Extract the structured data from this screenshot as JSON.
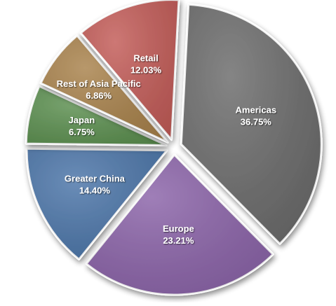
{
  "chart_data": {
    "type": "pie",
    "slices": [
      {
        "label": "Americas",
        "value": 36.75,
        "display": "36.75%",
        "color": "#6a6a6a"
      },
      {
        "label": "Europe",
        "value": 23.21,
        "display": "23.21%",
        "color": "#8a62a8"
      },
      {
        "label": "Greater China",
        "value": 14.4,
        "display": "14.40%",
        "color": "#4a74a8"
      },
      {
        "label": "Japan",
        "value": 6.75,
        "display": "6.75%",
        "color": "#5b8f4f"
      },
      {
        "label": "Rest of Asia Pacific",
        "value": 6.86,
        "display": "6.86%",
        "color": "#a8814a"
      },
      {
        "label": "Retail",
        "value": 12.03,
        "display": "12.03%",
        "color": "#c25a56"
      }
    ],
    "start_angle_deg": 3,
    "direction": "clockwise",
    "exploded": true,
    "label_color": "#ffffff",
    "legend": "none"
  }
}
